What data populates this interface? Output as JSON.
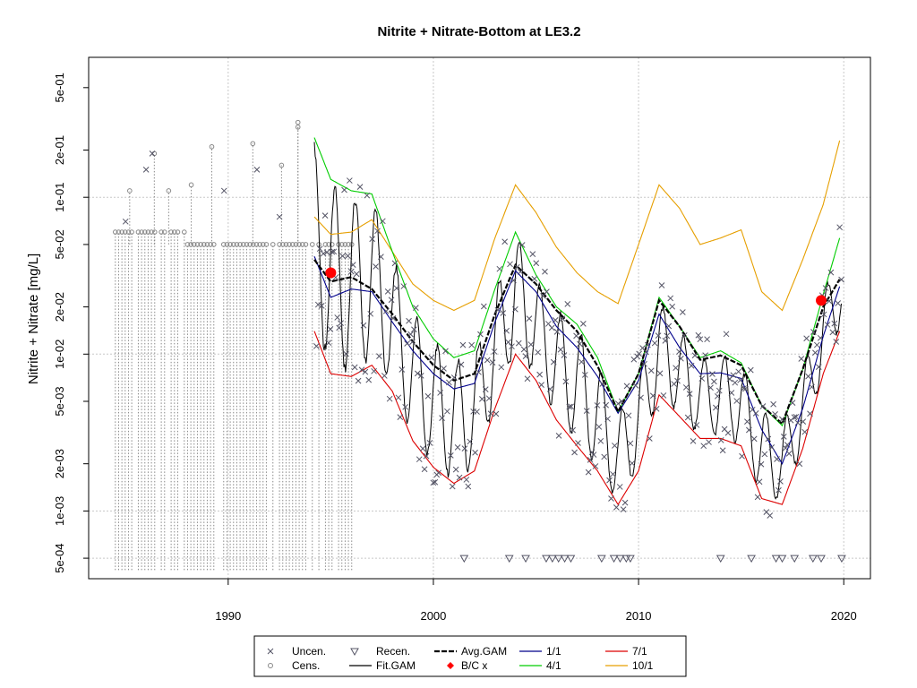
{
  "chart_data": {
    "type": "scatter",
    "title": "Nitrite + Nitrate-Bottom at LE3.2",
    "ylabel": "Nitrite + Nitrate [mg/L]",
    "xlabel": "",
    "x_scale": "linear",
    "y_scale": "log",
    "xlim": [
      1983.2,
      2021.3
    ],
    "ylim": [
      0.00037,
      0.78
    ],
    "x_ticks": [
      1990,
      2000,
      2010,
      2020
    ],
    "x_tick_labels": [
      "1990",
      "2000",
      "2010",
      "2020"
    ],
    "y_ticks": [
      0.0005,
      0.001,
      0.002,
      0.005,
      0.01,
      0.02,
      0.05,
      0.1,
      0.2,
      0.5
    ],
    "y_tick_labels": [
      "5e-04",
      "1e-03",
      "2e-03",
      "5e-03",
      "1e-02",
      "2e-02",
      "5e-02",
      "1e-01",
      "2e-01",
      "5e-01"
    ],
    "grid": true,
    "legend_position": "bottom",
    "colors": {
      "uncensored": "#555566",
      "censored": "#888888",
      "fit_gam": "#000000",
      "avg_gam": "#000000",
      "bc": "#ff0000",
      "p1_1": "#00008b",
      "p4_1": "#00cd00",
      "p7_1": "#dd0000",
      "p10_1": "#e69f00",
      "grid": "#c8c8c8"
    },
    "legend": [
      {
        "key": "unc",
        "label": "Uncen.",
        "symbol": "x-mark"
      },
      {
        "key": "cens",
        "label": "Cens.",
        "symbol": "circle"
      },
      {
        "key": "recen",
        "label": "Recen.",
        "symbol": "triangle-down"
      },
      {
        "key": "fit",
        "label": "Fit.GAM",
        "symbol": "line"
      },
      {
        "key": "avg",
        "label": "Avg.GAM",
        "symbol": "dashed-line"
      },
      {
        "key": "bc",
        "label": "B/C x",
        "symbol": "diamond"
      },
      {
        "key": "p11",
        "label": "1/1",
        "symbol": "line"
      },
      {
        "key": "p41",
        "label": "4/1",
        "symbol": "line"
      },
      {
        "key": "p71",
        "label": "7/1",
        "symbol": "line"
      },
      {
        "key": "p101",
        "label": "10/1",
        "symbol": "line"
      }
    ],
    "series": [
      {
        "name": "Avg.GAM",
        "x": [
          1994.2,
          1995.0,
          1996.0,
          1997.0,
          1998.0,
          1999.0,
          2000.0,
          2001.0,
          2002.0,
          2003.0,
          2004.0,
          2005.0,
          2006.0,
          2007.0,
          2008.0,
          2009.0,
          2010.0,
          2011.0,
          2012.0,
          2013.0,
          2014.0,
          2015.0,
          2016.0,
          2017.0,
          2018.0,
          2019.0,
          2019.8
        ],
        "y": [
          0.04,
          0.029,
          0.031,
          0.026,
          0.018,
          0.012,
          0.0085,
          0.0068,
          0.0075,
          0.018,
          0.037,
          0.028,
          0.019,
          0.014,
          0.0084,
          0.0043,
          0.0075,
          0.022,
          0.015,
          0.0092,
          0.0098,
          0.0085,
          0.0047,
          0.0036,
          0.008,
          0.02,
          0.03
        ]
      },
      {
        "name": "1/1",
        "x": [
          1994.2,
          1995.0,
          1996.0,
          1997.0,
          1998.0,
          1999.0,
          2000.0,
          2001.0,
          2002.0,
          2003.0,
          2004.0,
          2005.0,
          2006.0,
          2007.0,
          2008.0,
          2009.0,
          2010.0,
          2011.0,
          2012.0,
          2013.0,
          2014.0,
          2015.0,
          2016.0,
          2017.0,
          2018.0,
          2019.0,
          2019.8
        ],
        "y": [
          0.042,
          0.023,
          0.026,
          0.025,
          0.016,
          0.0105,
          0.0075,
          0.006,
          0.0065,
          0.016,
          0.034,
          0.025,
          0.015,
          0.011,
          0.0072,
          0.0042,
          0.0068,
          0.018,
          0.011,
          0.0075,
          0.0076,
          0.007,
          0.0033,
          0.002,
          0.0045,
          0.013,
          0.027
        ]
      },
      {
        "name": "4/1",
        "x": [
          1994.2,
          1995.0,
          1996.0,
          1997.0,
          1998.0,
          1999.0,
          2000.0,
          2001.0,
          2002.0,
          2003.0,
          2004.0,
          2005.0,
          2006.0,
          2007.0,
          2008.0,
          2009.0,
          2010.0,
          2011.0,
          2012.0,
          2013.0,
          2014.0,
          2015.0,
          2016.0,
          2017.0,
          2018.0,
          2019.0,
          2019.8
        ],
        "y": [
          0.24,
          0.13,
          0.11,
          0.105,
          0.045,
          0.02,
          0.0125,
          0.0095,
          0.0105,
          0.026,
          0.06,
          0.032,
          0.02,
          0.0155,
          0.0095,
          0.0043,
          0.0075,
          0.023,
          0.015,
          0.0095,
          0.0105,
          0.0088,
          0.0047,
          0.0035,
          0.008,
          0.024,
          0.055
        ]
      },
      {
        "name": "7/1",
        "x": [
          1994.2,
          1995.0,
          1996.0,
          1997.0,
          1998.0,
          1999.0,
          2000.0,
          2001.0,
          2002.0,
          2003.0,
          2004.0,
          2005.0,
          2006.0,
          2007.0,
          2008.0,
          2009.0,
          2010.0,
          2011.0,
          2012.0,
          2013.0,
          2014.0,
          2015.0,
          2016.0,
          2017.0,
          2018.0,
          2019.0,
          2019.8
        ],
        "y": [
          0.014,
          0.0075,
          0.0072,
          0.0085,
          0.0058,
          0.0028,
          0.0019,
          0.0015,
          0.0018,
          0.0045,
          0.01,
          0.0068,
          0.0038,
          0.0026,
          0.0018,
          0.0011,
          0.0018,
          0.0055,
          0.004,
          0.0029,
          0.0029,
          0.0026,
          0.0012,
          0.0011,
          0.0025,
          0.0075,
          0.014
        ]
      },
      {
        "name": "10/1",
        "x": [
          1994.2,
          1995.0,
          1996.0,
          1997.0,
          1998.0,
          1999.0,
          2000.0,
          2001.0,
          2002.0,
          2003.0,
          2004.0,
          2005.0,
          2006.0,
          2007.0,
          2008.0,
          2009.0,
          2010.0,
          2011.0,
          2012.0,
          2013.0,
          2014.0,
          2015.0,
          2016.0,
          2017.0,
          2018.0,
          2019.0,
          2019.8
        ],
        "y": [
          0.075,
          0.058,
          0.06,
          0.072,
          0.045,
          0.028,
          0.022,
          0.019,
          0.022,
          0.055,
          0.12,
          0.08,
          0.048,
          0.033,
          0.025,
          0.021,
          0.05,
          0.12,
          0.085,
          0.05,
          0.055,
          0.062,
          0.025,
          0.019,
          0.04,
          0.09,
          0.23
        ]
      },
      {
        "name": "B/C x",
        "x": [
          1995.0,
          2018.9
        ],
        "y": [
          0.033,
          0.022
        ]
      }
    ]
  }
}
